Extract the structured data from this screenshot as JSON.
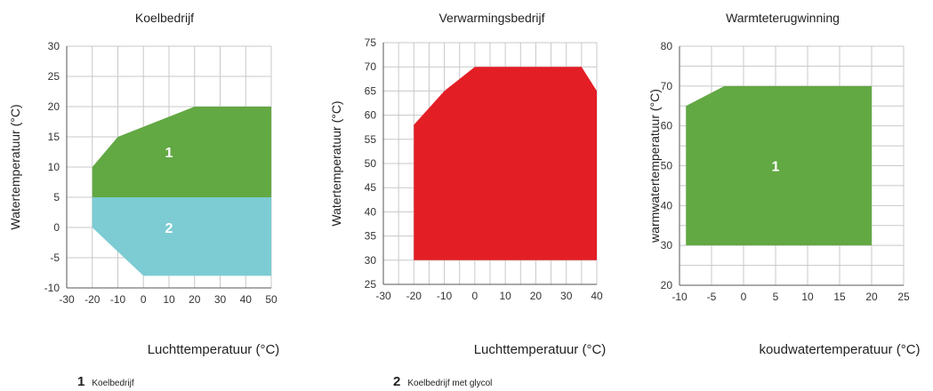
{
  "chart_data": [
    {
      "type": "area",
      "title": "Koelbedrijf",
      "xlabel": "Luchttemperatuur (°C)",
      "ylabel": "Watertemperatuur (°C)",
      "xlim": [
        -30,
        50
      ],
      "ylim": [
        -10,
        30
      ],
      "xticks": [
        -30,
        -20,
        -10,
        0,
        10,
        20,
        30,
        40,
        50
      ],
      "xtick_labels": [
        "-30",
        "-20",
        "-10",
        "0",
        "10",
        "20",
        "30",
        "40",
        "50"
      ],
      "yticks": [
        -10,
        -5,
        0,
        5,
        10,
        15,
        20,
        25,
        30
      ],
      "ytick_labels": [
        "-10",
        "-5",
        "0",
        "5",
        "10",
        "15",
        "20",
        "25",
        "30"
      ],
      "grid": true,
      "regions": [
        {
          "label": "1",
          "color": "#62a843",
          "points": [
            [
              -20,
              5
            ],
            [
              -20,
              10
            ],
            [
              -10,
              15
            ],
            [
              20,
              20
            ],
            [
              50,
              20
            ],
            [
              50,
              5
            ]
          ],
          "label_pos": [
            10,
            12.5
          ]
        },
        {
          "label": "2",
          "color": "#7dccd3",
          "points": [
            [
              -20,
              5
            ],
            [
              -20,
              0
            ],
            [
              0,
              -8
            ],
            [
              50,
              -8
            ],
            [
              50,
              5
            ]
          ],
          "label_pos": [
            10,
            0
          ]
        }
      ]
    },
    {
      "type": "area",
      "title": "Verwarmingsbedrijf",
      "xlabel": "Luchttemperatuur (°C)",
      "ylabel": "Watertemperatuur (°C)",
      "xlim": [
        -30,
        40
      ],
      "ylim": [
        25,
        75
      ],
      "xticks": [
        -30,
        -20,
        -10,
        0,
        10,
        20,
        30,
        40
      ],
      "xtick_labels": [
        "-30",
        "-20",
        "-10",
        "0",
        "10",
        "20",
        "30",
        "40"
      ],
      "yticks": [
        25,
        30,
        35,
        40,
        45,
        50,
        55,
        60,
        65,
        70,
        75
      ],
      "ytick_labels": [
        "25",
        "30",
        "35",
        "40",
        "45",
        "50",
        "55",
        "60",
        "65",
        "70",
        "75"
      ],
      "minor_x": 5,
      "grid": true,
      "regions": [
        {
          "label": "",
          "color": "#e31e25",
          "points": [
            [
              -20,
              30
            ],
            [
              -20,
              58
            ],
            [
              -10,
              65
            ],
            [
              0,
              70
            ],
            [
              35,
              70
            ],
            [
              40,
              65
            ],
            [
              40,
              30
            ]
          ]
        }
      ]
    },
    {
      "type": "area",
      "title": "Warmteterugwinning",
      "xlabel": "koudwatertemperatuur (°C)",
      "ylabel": "warmwatertemperatuur (°C)",
      "xlim": [
        -10,
        25
      ],
      "ylim": [
        20,
        80
      ],
      "xticks": [
        -10,
        -5,
        0,
        5,
        10,
        15,
        20,
        25
      ],
      "xtick_labels": [
        "-10",
        "-5",
        "0",
        "5",
        "10",
        "15",
        "20",
        "25"
      ],
      "yticks": [
        20,
        30,
        40,
        50,
        60,
        70,
        80
      ],
      "ytick_labels": [
        "20",
        "30",
        "40",
        "50",
        "60",
        "70",
        "80"
      ],
      "minor_y": 5,
      "grid": true,
      "regions": [
        {
          "label": "1",
          "color": "#62a843",
          "points": [
            [
              -9,
              30
            ],
            [
              -9,
              65
            ],
            [
              -3,
              70
            ],
            [
              20,
              70
            ],
            [
              20,
              30
            ]
          ],
          "label_pos": [
            5,
            50
          ]
        }
      ]
    }
  ],
  "legend": [
    {
      "number": "1",
      "text": "Koelbedrijf"
    },
    {
      "number": "2",
      "text": "Koelbedrijf met glycol"
    }
  ]
}
